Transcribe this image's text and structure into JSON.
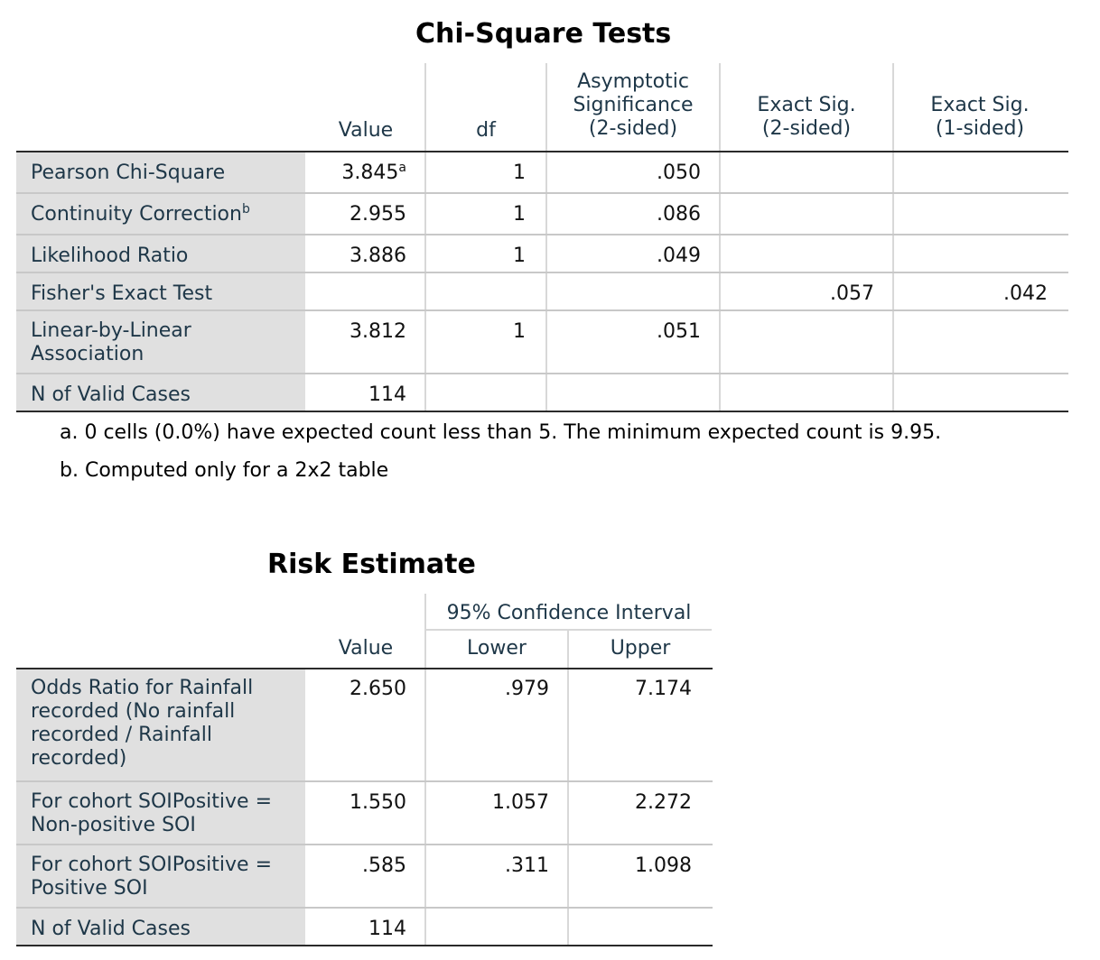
{
  "chi": {
    "title": "Chi-Square Tests",
    "headers": {
      "value": "Value",
      "df": "df",
      "asym": [
        "Asymptotic",
        "Significance",
        "(2-sided)"
      ],
      "exact2": [
        "Exact Sig.",
        "(2-sided)"
      ],
      "exact1": [
        "Exact Sig.",
        "(1-sided)"
      ]
    },
    "rows": [
      {
        "label": "Pearson Chi-Square",
        "value": "3.845",
        "sup": "a",
        "df": "1",
        "asym": ".050",
        "exact2": "",
        "exact1": ""
      },
      {
        "label": "Continuity Correction",
        "label_sup": "b",
        "value": "2.955",
        "df": "1",
        "asym": ".086",
        "exact2": "",
        "exact1": ""
      },
      {
        "label": "Likelihood Ratio",
        "value": "3.886",
        "df": "1",
        "asym": ".049",
        "exact2": "",
        "exact1": ""
      },
      {
        "label": "Fisher's Exact Test",
        "value": "",
        "df": "",
        "asym": "",
        "exact2": ".057",
        "exact1": ".042"
      },
      {
        "label": [
          "Linear-by-Linear",
          "Association"
        ],
        "value": "3.812",
        "df": "1",
        "asym": ".051",
        "exact2": "",
        "exact1": ""
      },
      {
        "label": "N of Valid Cases",
        "value": "114",
        "df": "",
        "asym": "",
        "exact2": "",
        "exact1": ""
      }
    ],
    "notes": [
      "a. 0 cells (0.0%) have expected count less than 5. The minimum expected count is 9.95.",
      "b. Computed only for a 2x2 table"
    ]
  },
  "risk": {
    "title": "Risk Estimate",
    "headers": {
      "value": "Value",
      "ci": "95% Confidence Interval",
      "lower": "Lower",
      "upper": "Upper"
    },
    "rows": [
      {
        "label": [
          "Odds Ratio for Rainfall",
          "recorded (No rainfall",
          "recorded / Rainfall",
          "recorded)"
        ],
        "value": "2.650",
        "lower": ".979",
        "upper": "7.174"
      },
      {
        "label": [
          "For cohort SOIPositive =",
          "Non-positive SOI"
        ],
        "value": "1.550",
        "lower": "1.057",
        "upper": "2.272"
      },
      {
        "label": [
          "For cohort SOIPositive =",
          "Positive SOI"
        ],
        "value": ".585",
        "lower": ".311",
        "upper": "1.098"
      },
      {
        "label": "N of Valid Cases",
        "value": "114",
        "lower": "",
        "upper": ""
      }
    ]
  }
}
